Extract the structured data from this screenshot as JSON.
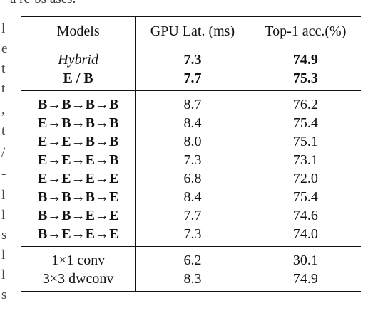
{
  "fragments": {
    "top": "a re-bs ases.",
    "margin_chars": [
      "l",
      "e",
      "t",
      "t",
      ",",
      "t",
      "/",
      "-",
      "l",
      "l",
      "s",
      "l",
      "l",
      "s"
    ]
  },
  "table": {
    "headers": [
      "Models",
      "GPU Lat. (ms)",
      "Top-1 acc.(%)"
    ],
    "groups": [
      {
        "rows": [
          {
            "model": "Hybrid",
            "latency": "7.3",
            "accuracy": "74.9",
            "italic": true,
            "bold_values": true
          },
          {
            "model": "E / B",
            "latency": "7.7",
            "accuracy": "75.3",
            "bold_model": true,
            "bold_values": true
          }
        ]
      },
      {
        "rows": [
          {
            "model": "B→B→B→B",
            "latency": "8.7",
            "accuracy": "76.2",
            "bold_model": true
          },
          {
            "model": "E→B→B→B",
            "latency": "8.4",
            "accuracy": "75.4",
            "bold_model": true
          },
          {
            "model": "E→E→B→B",
            "latency": "8.0",
            "accuracy": "75.1",
            "bold_model": true
          },
          {
            "model": "E→E→E→B",
            "latency": "7.3",
            "accuracy": "73.1",
            "bold_model": true
          },
          {
            "model": "E→E→E→E",
            "latency": "6.8",
            "accuracy": "72.0",
            "bold_model": true
          },
          {
            "model": "B→B→B→E",
            "latency": "8.4",
            "accuracy": "75.4",
            "bold_model": true
          },
          {
            "model": "B→B→E→E",
            "latency": "7.7",
            "accuracy": "74.6",
            "bold_model": true
          },
          {
            "model": "B→E→E→E",
            "latency": "7.3",
            "accuracy": "74.0",
            "bold_model": true
          }
        ]
      },
      {
        "rows": [
          {
            "model": "1×1 conv",
            "latency": "6.2",
            "accuracy": "30.1"
          },
          {
            "model": "3×3 dwconv",
            "latency": "8.3",
            "accuracy": "74.9"
          }
        ]
      }
    ]
  }
}
